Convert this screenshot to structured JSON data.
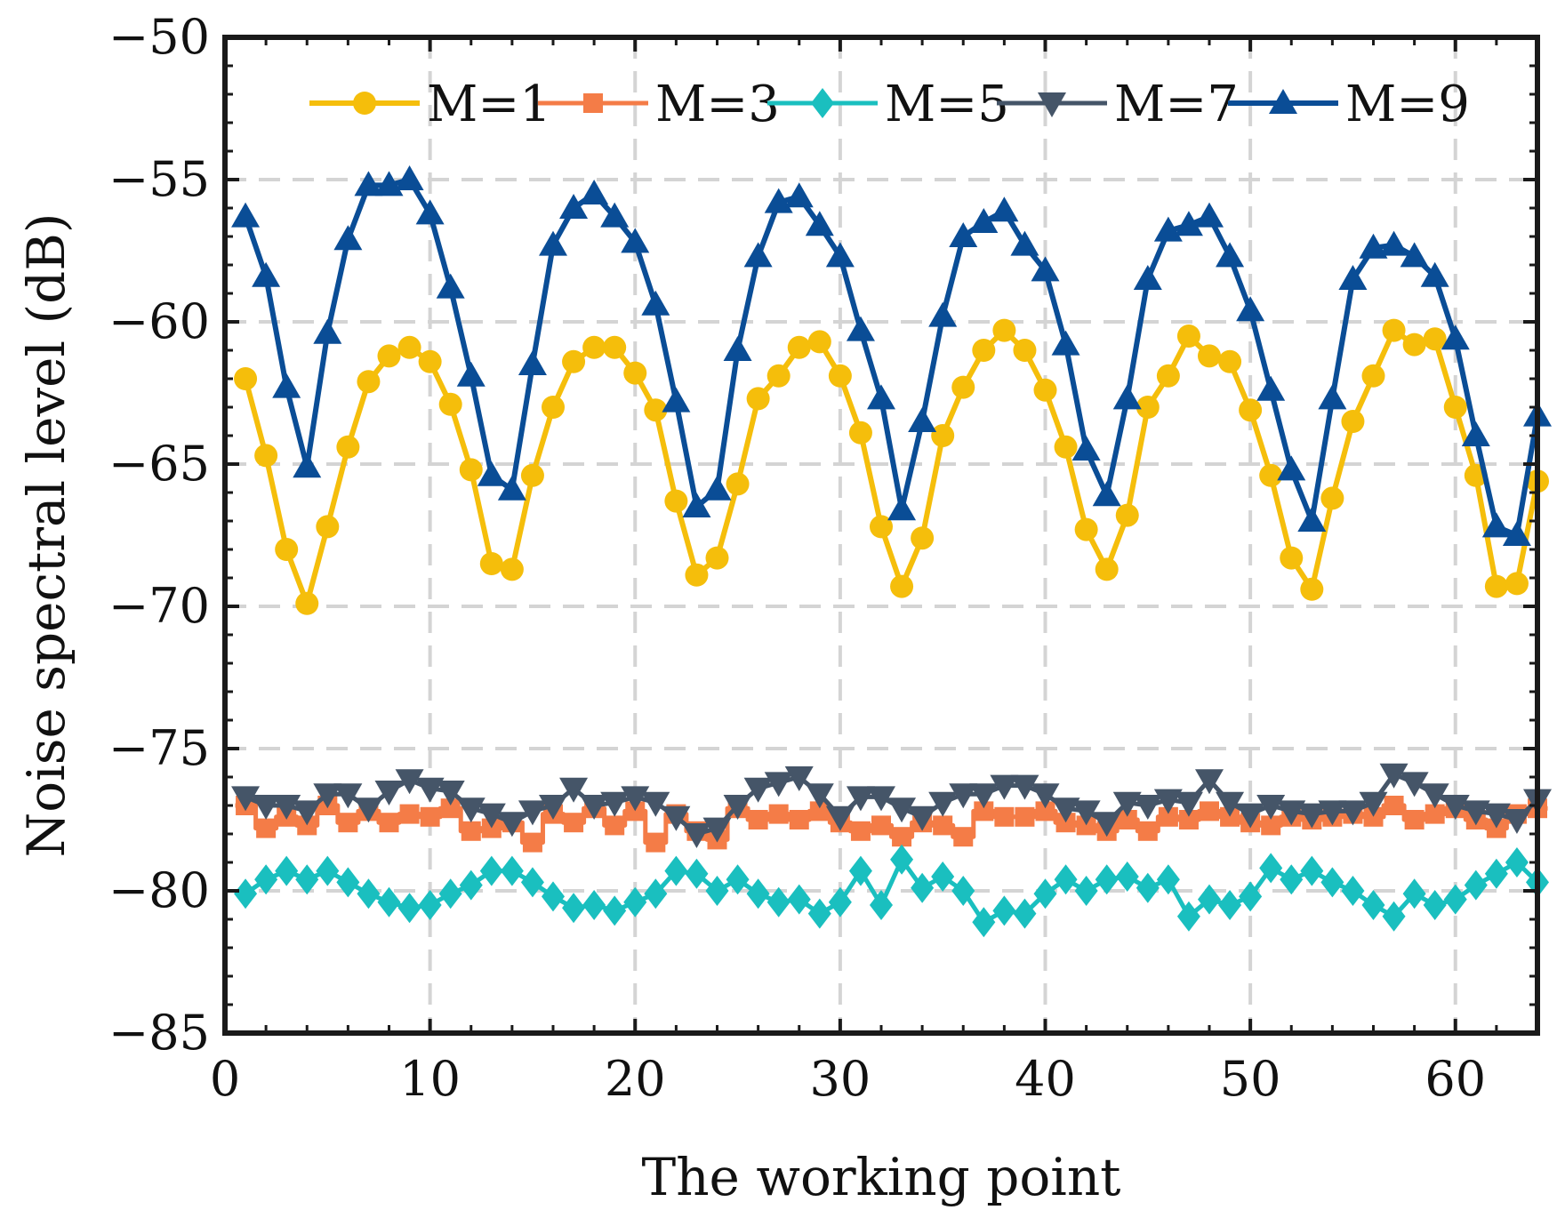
{
  "chart_data": {
    "type": "line",
    "xlabel": "The working point",
    "ylabel": "Noise spectral level (dB)",
    "xlim": [
      0,
      64
    ],
    "ylim": [
      -85,
      -50
    ],
    "xticks": [
      0,
      10,
      20,
      30,
      40,
      50,
      60
    ],
    "yticks": [
      -85,
      -80,
      -75,
      -70,
      -65,
      -60,
      -55,
      -50
    ],
    "xtick_labels": [
      "0",
      "10",
      "20",
      "30",
      "40",
      "50",
      "60"
    ],
    "ytick_labels": [
      "−85",
      "−80",
      "−75",
      "−70",
      "−65",
      "−60",
      "−55",
      "−50"
    ],
    "grid": true,
    "legend_position": "top",
    "x": [
      1,
      2,
      3,
      4,
      5,
      6,
      7,
      8,
      9,
      10,
      11,
      12,
      13,
      14,
      15,
      16,
      17,
      18,
      19,
      20,
      21,
      22,
      23,
      24,
      25,
      26,
      27,
      28,
      29,
      30,
      31,
      32,
      33,
      34,
      35,
      36,
      37,
      38,
      39,
      40,
      41,
      42,
      43,
      44,
      45,
      46,
      47,
      48,
      49,
      50,
      51,
      52,
      53,
      54,
      55,
      56,
      57,
      58,
      59,
      60,
      61,
      62,
      63,
      64
    ],
    "series": [
      {
        "name": "M=1",
        "color": "#F5BE0B",
        "marker": "circle",
        "values": [
          -62,
          -64.7,
          -68,
          -69.9,
          -67.2,
          -64.4,
          -62.1,
          -61.2,
          -60.9,
          -61.4,
          -62.9,
          -65.2,
          -68.5,
          -68.7,
          -65.4,
          -63,
          -61.4,
          -60.9,
          -60.9,
          -61.8,
          -63.1,
          -66.3,
          -68.9,
          -68.3,
          -65.7,
          -62.7,
          -61.9,
          -60.9,
          -60.7,
          -61.9,
          -63.9,
          -67.2,
          -69.3,
          -67.6,
          -64,
          -62.3,
          -61,
          -60.3,
          -61,
          -62.4,
          -64.4,
          -67.3,
          -68.7,
          -66.8,
          -63,
          -61.9,
          -60.5,
          -61.2,
          -61.4,
          -63.1,
          -65.4,
          -68.3,
          -69.4,
          -66.2,
          -63.5,
          -61.9,
          -60.3,
          -60.8,
          -60.6,
          -63.0,
          -65.4,
          -69.3,
          -69.2,
          -65.6
        ]
      },
      {
        "name": "M=3",
        "color": "#F47C47",
        "marker": "square",
        "values": [
          -77,
          -77.8,
          -77.4,
          -77.7,
          -77,
          -77.6,
          -77.2,
          -77.6,
          -77.3,
          -77.4,
          -77.1,
          -77.9,
          -77.8,
          -77.6,
          -78.3,
          -77.3,
          -77.6,
          -77.1,
          -77.7,
          -77.2,
          -78.3,
          -77.3,
          -77.9,
          -78.2,
          -77.1,
          -77.5,
          -77.3,
          -77.5,
          -77.2,
          -77.6,
          -77.9,
          -77.7,
          -78.1,
          -77.6,
          -77.7,
          -78.1,
          -77.2,
          -77.4,
          -77.4,
          -77.2,
          -77.6,
          -77.7,
          -77.9,
          -77.5,
          -77.9,
          -77.4,
          -77.5,
          -77.2,
          -77.4,
          -77.6,
          -77.7,
          -77.4,
          -77.5,
          -77.4,
          -77.3,
          -77.4,
          -77.0,
          -77.5,
          -77.3,
          -77.1,
          -77.5,
          -77.8,
          -77.3,
          -77.1
        ]
      },
      {
        "name": "M=5",
        "color": "#1ABFBF",
        "marker": "diamond",
        "values": [
          -80.1,
          -79.6,
          -79.3,
          -79.6,
          -79.3,
          -79.7,
          -80.1,
          -80.4,
          -80.6,
          -80.5,
          -80.1,
          -79.8,
          -79.3,
          -79.3,
          -79.7,
          -80.2,
          -80.6,
          -80.5,
          -80.7,
          -80.4,
          -80.1,
          -79.3,
          -79.4,
          -80,
          -79.6,
          -80.1,
          -80.4,
          -80.3,
          -80.8,
          -80.4,
          -79.3,
          -80.5,
          -78.9,
          -79.9,
          -79.5,
          -80,
          -81.1,
          -80.7,
          -80.8,
          -80.1,
          -79.6,
          -80,
          -79.6,
          -79.5,
          -79.9,
          -79.6,
          -80.9,
          -80.3,
          -80.5,
          -80.2,
          -79.2,
          -79.6,
          -79.3,
          -79.7,
          -80,
          -80.5,
          -80.9,
          -80.1,
          -80.5,
          -80.3,
          -79.8,
          -79.4,
          -79.0,
          -79.7
        ]
      },
      {
        "name": "M=7",
        "color": "#455568",
        "marker": "triangle-down",
        "values": [
          -76.7,
          -77.0,
          -77.0,
          -77.2,
          -76.6,
          -76.6,
          -77.1,
          -76.5,
          -76.1,
          -76.4,
          -76.5,
          -77.1,
          -77.3,
          -77.6,
          -77.2,
          -77.0,
          -76.4,
          -77.0,
          -76.9,
          -76.7,
          -76.9,
          -77.4,
          -78.0,
          -77.8,
          -77.0,
          -76.4,
          -76.2,
          -76.0,
          -76.6,
          -77.4,
          -76.7,
          -76.7,
          -77.1,
          -77.4,
          -76.9,
          -76.6,
          -76.6,
          -76.3,
          -76.3,
          -76.6,
          -77.1,
          -77.2,
          -77.6,
          -76.9,
          -77.0,
          -76.8,
          -76.9,
          -76.1,
          -76.9,
          -77.3,
          -77.0,
          -77.2,
          -77.3,
          -77.2,
          -77.2,
          -76.9,
          -75.9,
          -76.2,
          -76.6,
          -77.0,
          -77.2,
          -77.3,
          -77.5,
          -76.8
        ]
      },
      {
        "name": "M=9",
        "color": "#0A4D96",
        "marker": "triangle-up",
        "values": [
          -56.3,
          -58.4,
          -62.3,
          -65.1,
          -60.4,
          -57.1,
          -55.2,
          -55.2,
          -55.0,
          -56.2,
          -58.8,
          -61.9,
          -65.4,
          -65.9,
          -61.5,
          -57.3,
          -56.0,
          -55.5,
          -56.3,
          -57.2,
          -59.4,
          -62.8,
          -66.5,
          -65.9,
          -61.0,
          -57.7,
          -55.8,
          -55.6,
          -56.6,
          -57.7,
          -60.3,
          -62.7,
          -66.6,
          -63.5,
          -59.8,
          -57.0,
          -56.5,
          -56.1,
          -57.3,
          -58.2,
          -60.8,
          -64.5,
          -66.1,
          -62.7,
          -58.5,
          -56.8,
          -56.6,
          -56.3,
          -57.7,
          -59.6,
          -62.4,
          -65.2,
          -67.0,
          -62.7,
          -58.5,
          -57.4,
          -57.3,
          -57.7,
          -58.4,
          -60.6,
          -64.0,
          -67.2,
          -67.5,
          -63.3
        ]
      }
    ]
  }
}
